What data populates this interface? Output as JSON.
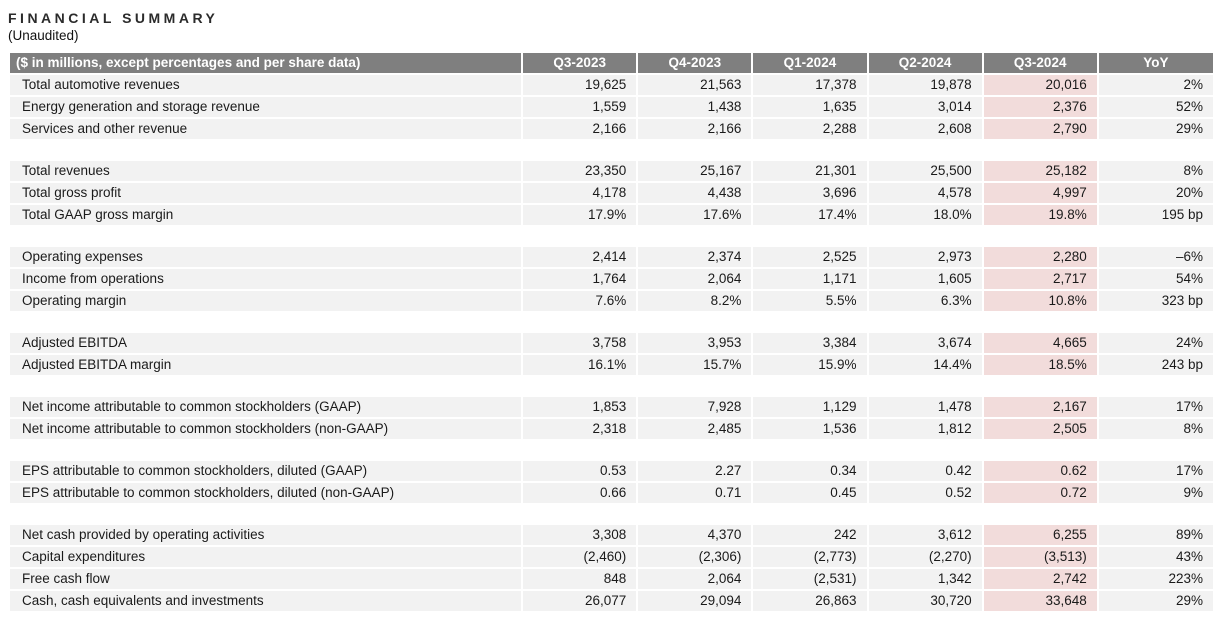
{
  "page": {
    "title": "FINANCIAL SUMMARY",
    "subtitle": "(Unaudited)"
  },
  "colors": {
    "header_bg": "#7f7f7f",
    "header_text": "#ffffff",
    "row_bg": "#f2f2f2",
    "highlight_bg": "#f2dcdb",
    "text_color": "#1a1a1a",
    "page_bg": "#ffffff"
  },
  "table": {
    "header": {
      "label": "($ in millions, except percentages and per share data)",
      "columns": [
        "Q3-2023",
        "Q4-2023",
        "Q1-2024",
        "Q2-2024",
        "Q3-2024",
        "YoY"
      ],
      "highlighted_column": "Q3-2024",
      "highlighted_column_index": 4
    },
    "groups": [
      {
        "rows": [
          {
            "label": "Total automotive revenues",
            "values": [
              "19,625",
              "21,563",
              "17,378",
              "19,878",
              "20,016",
              "2%"
            ]
          },
          {
            "label": "Energy generation and storage revenue",
            "values": [
              "1,559",
              "1,438",
              "1,635",
              "3,014",
              "2,376",
              "52%"
            ]
          },
          {
            "label": "Services and other revenue",
            "values": [
              "2,166",
              "2,166",
              "2,288",
              "2,608",
              "2,790",
              "29%"
            ]
          }
        ]
      },
      {
        "rows": [
          {
            "label": "Total revenues",
            "values": [
              "23,350",
              "25,167",
              "21,301",
              "25,500",
              "25,182",
              "8%"
            ]
          },
          {
            "label": "Total gross profit",
            "values": [
              "4,178",
              "4,438",
              "3,696",
              "4,578",
              "4,997",
              "20%"
            ]
          },
          {
            "label": "Total GAAP gross margin",
            "values": [
              "17.9%",
              "17.6%",
              "17.4%",
              "18.0%",
              "19.8%",
              "195 bp"
            ]
          }
        ]
      },
      {
        "rows": [
          {
            "label": "Operating expenses",
            "values": [
              "2,414",
              "2,374",
              "2,525",
              "2,973",
              "2,280",
              "–6%"
            ]
          },
          {
            "label": "Income from operations",
            "values": [
              "1,764",
              "2,064",
              "1,171",
              "1,605",
              "2,717",
              "54%"
            ]
          },
          {
            "label": "Operating margin",
            "values": [
              "7.6%",
              "8.2%",
              "5.5%",
              "6.3%",
              "10.8%",
              "323 bp"
            ]
          }
        ]
      },
      {
        "rows": [
          {
            "label": "Adjusted EBITDA",
            "values": [
              "3,758",
              "3,953",
              "3,384",
              "3,674",
              "4,665",
              "24%"
            ]
          },
          {
            "label": "Adjusted EBITDA margin",
            "values": [
              "16.1%",
              "15.7%",
              "15.9%",
              "14.4%",
              "18.5%",
              "243 bp"
            ]
          }
        ]
      },
      {
        "rows": [
          {
            "label": "Net income attributable to common stockholders (GAAP)",
            "values": [
              "1,853",
              "7,928",
              "1,129",
              "1,478",
              "2,167",
              "17%"
            ]
          },
          {
            "label": "Net income attributable to common stockholders (non-GAAP)",
            "values": [
              "2,318",
              "2,485",
              "1,536",
              "1,812",
              "2,505",
              "8%"
            ]
          }
        ]
      },
      {
        "rows": [
          {
            "label": "EPS attributable to common stockholders, diluted (GAAP)",
            "values": [
              "0.53",
              "2.27",
              "0.34",
              "0.42",
              "0.62",
              "17%"
            ]
          },
          {
            "label": "EPS attributable to common stockholders, diluted (non-GAAP)",
            "values": [
              "0.66",
              "0.71",
              "0.45",
              "0.52",
              "0.72",
              "9%"
            ]
          }
        ]
      },
      {
        "rows": [
          {
            "label": "Net cash provided by operating activities",
            "values": [
              "3,308",
              "4,370",
              "242",
              "3,612",
              "6,255",
              "89%"
            ]
          },
          {
            "label": "Capital expenditures",
            "values": [
              "(2,460)",
              "(2,306)",
              "(2,773)",
              "(2,270)",
              "(3,513)",
              "43%"
            ]
          },
          {
            "label": "Free cash flow",
            "values": [
              "848",
              "2,064",
              "(2,531)",
              "1,342",
              "2,742",
              "223%"
            ]
          },
          {
            "label": "Cash, cash equivalents and investments",
            "values": [
              "26,077",
              "29,094",
              "26,863",
              "30,720",
              "33,648",
              "29%"
            ]
          }
        ]
      }
    ]
  }
}
